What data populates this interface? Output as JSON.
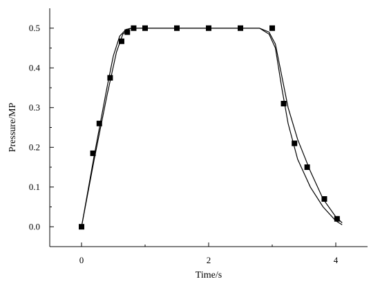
{
  "chart_data": {
    "type": "scatter",
    "xlabel": "Time/s",
    "ylabel": "Pressure/MP",
    "xlim": [
      -0.5,
      4.5
    ],
    "ylim": [
      -0.05,
      0.55
    ],
    "x_ticks": [
      0,
      2,
      4
    ],
    "x_minor_ticks": [
      1,
      3
    ],
    "y_ticks": [
      0.0,
      0.1,
      0.2,
      0.3,
      0.4,
      0.5
    ],
    "y_tick_labels": [
      "0.0",
      "0.1",
      "0.2",
      "0.3",
      "0.4",
      "0.5"
    ],
    "grid": false,
    "series": [
      {
        "kind": "markers",
        "marker": "square",
        "points": [
          {
            "x": 0.0,
            "y": 0.0
          },
          {
            "x": 0.18,
            "y": 0.185
          },
          {
            "x": 0.28,
            "y": 0.26
          },
          {
            "x": 0.45,
            "y": 0.375
          },
          {
            "x": 0.63,
            "y": 0.467
          },
          {
            "x": 0.72,
            "y": 0.49
          },
          {
            "x": 0.82,
            "y": 0.5
          },
          {
            "x": 1.0,
            "y": 0.5
          },
          {
            "x": 1.5,
            "y": 0.5
          },
          {
            "x": 2.0,
            "y": 0.5
          },
          {
            "x": 2.5,
            "y": 0.5
          },
          {
            "x": 3.0,
            "y": 0.5
          },
          {
            "x": 3.18,
            "y": 0.31
          },
          {
            "x": 3.35,
            "y": 0.21
          },
          {
            "x": 3.55,
            "y": 0.15
          },
          {
            "x": 3.82,
            "y": 0.07
          },
          {
            "x": 4.02,
            "y": 0.02
          }
        ]
      },
      {
        "kind": "line",
        "points": [
          {
            "x": 0.0,
            "y": 0.0
          },
          {
            "x": 0.2,
            "y": 0.17
          },
          {
            "x": 0.4,
            "y": 0.33
          },
          {
            "x": 0.55,
            "y": 0.44
          },
          {
            "x": 0.65,
            "y": 0.485
          },
          {
            "x": 0.75,
            "y": 0.499
          },
          {
            "x": 0.9,
            "y": 0.5
          },
          {
            "x": 2.8,
            "y": 0.5
          },
          {
            "x": 2.95,
            "y": 0.485
          },
          {
            "x": 3.05,
            "y": 0.45
          },
          {
            "x": 3.15,
            "y": 0.35
          },
          {
            "x": 3.25,
            "y": 0.26
          },
          {
            "x": 3.4,
            "y": 0.17
          },
          {
            "x": 3.6,
            "y": 0.1
          },
          {
            "x": 3.8,
            "y": 0.05
          },
          {
            "x": 4.0,
            "y": 0.015
          },
          {
            "x": 4.1,
            "y": 0.005
          }
        ]
      },
      {
        "kind": "line",
        "points": [
          {
            "x": 0.0,
            "y": 0.0
          },
          {
            "x": 0.2,
            "y": 0.18
          },
          {
            "x": 0.4,
            "y": 0.35
          },
          {
            "x": 0.5,
            "y": 0.43
          },
          {
            "x": 0.6,
            "y": 0.48
          },
          {
            "x": 0.7,
            "y": 0.497
          },
          {
            "x": 0.8,
            "y": 0.5
          },
          {
            "x": 2.8,
            "y": 0.5
          },
          {
            "x": 2.95,
            "y": 0.49
          },
          {
            "x": 3.05,
            "y": 0.46
          },
          {
            "x": 3.15,
            "y": 0.38
          },
          {
            "x": 3.25,
            "y": 0.3
          },
          {
            "x": 3.4,
            "y": 0.22
          },
          {
            "x": 3.6,
            "y": 0.14
          },
          {
            "x": 3.8,
            "y": 0.07
          },
          {
            "x": 4.0,
            "y": 0.025
          },
          {
            "x": 4.1,
            "y": 0.01
          }
        ]
      }
    ]
  }
}
